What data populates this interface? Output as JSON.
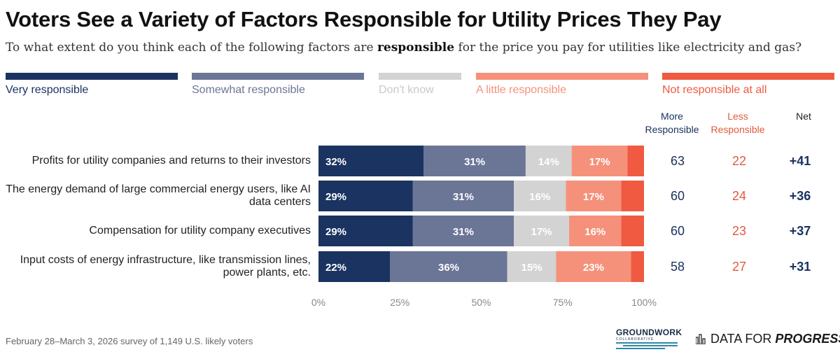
{
  "title": "Voters See a Variety of Factors Responsible for Utility Prices They Pay",
  "subtitle_prefix": "To what extent do you think each of the following factors are ",
  "subtitle_bold": "responsible",
  "subtitle_suffix": " for the price you pay for utilities like electricity and gas?",
  "columns": {
    "more_line1": "More",
    "more_line2": "Responsible",
    "less_line1": "Less",
    "less_line2": "Responsible",
    "net": "Net"
  },
  "footer": "February 28–March 3, 2026 survey of 1,149 U.S. likely voters",
  "logos": {
    "groundwork": "GROUNDWORK",
    "groundwork_sub": "COLLABORATIVE",
    "dfp_prefix": "DATA FOR",
    "dfp_suffix": "PROGRESS"
  },
  "colors": {
    "very": "#1b3360",
    "somewhat": "#6b7596",
    "dont_know": "#d3d3d3",
    "little": "#f5917a",
    "not": "#ef5a40",
    "more_text": "#1b3360",
    "less_text": "#e2593f"
  },
  "chart_data": {
    "type": "bar",
    "orientation": "horizontal-stacked",
    "categories": [
      "Profits for utility companies and returns to their investors",
      "The energy demand of large commercial energy users, like AI data centers",
      "Compensation for utility company executives",
      "Input costs of energy infrastructure, like transmission lines, power plants, etc."
    ],
    "series": [
      {
        "name": "Very responsible",
        "values": [
          32,
          29,
          29,
          22
        ]
      },
      {
        "name": "Somewhat responsible",
        "values": [
          31,
          31,
          31,
          36
        ]
      },
      {
        "name": "Don't know",
        "values": [
          14,
          16,
          17,
          15
        ]
      },
      {
        "name": "A little responsible",
        "values": [
          17,
          17,
          16,
          23
        ]
      },
      {
        "name": "Not responsible at all",
        "values": [
          5,
          7,
          7,
          4
        ]
      }
    ],
    "more_responsible": [
      63,
      60,
      60,
      58
    ],
    "less_responsible": [
      22,
      24,
      23,
      27
    ],
    "net": [
      "+41",
      "+36",
      "+37",
      "+31"
    ],
    "x_ticks": [
      "0%",
      "25%",
      "50%",
      "75%",
      "100%"
    ],
    "xlim": [
      0,
      100
    ],
    "legend_position": "top"
  }
}
